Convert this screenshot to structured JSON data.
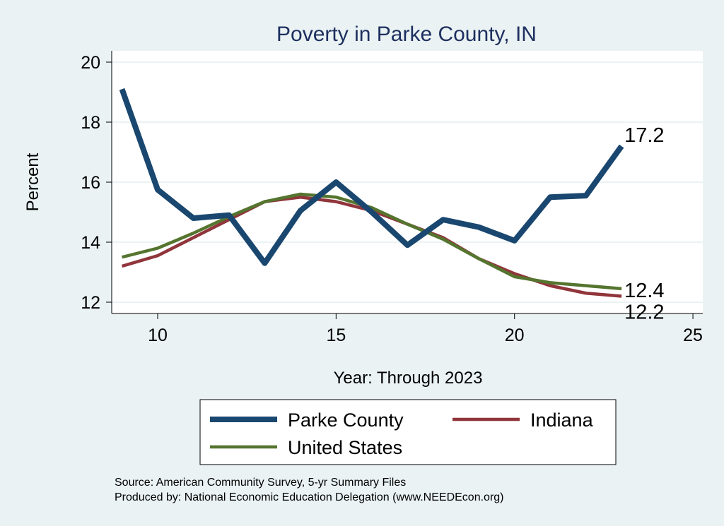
{
  "chart_data": {
    "type": "line",
    "title": "Poverty in Parke County, IN",
    "xlabel": "Year: Through 2023",
    "ylabel": "Percent",
    "xlim": [
      8.7,
      25.3
    ],
    "ylim": [
      11.6,
      20.4
    ],
    "xticks": [
      10,
      15,
      20,
      25
    ],
    "yticks": [
      12,
      14,
      16,
      18,
      20
    ],
    "grid": true,
    "x": [
      9,
      10,
      11,
      12,
      13,
      14,
      15,
      16,
      17,
      18,
      19,
      20,
      21,
      22,
      23
    ],
    "series": [
      {
        "name": "Parke County",
        "color": "#1a476f",
        "width": 8,
        "values": [
          19.1,
          15.75,
          14.8,
          14.9,
          13.3,
          15.05,
          16.0,
          15.0,
          13.9,
          14.75,
          14.5,
          14.05,
          15.5,
          15.55,
          17.2
        ],
        "end_label": "17.2"
      },
      {
        "name": "Indiana",
        "color": "#90353b",
        "width": 4.5,
        "values": [
          13.2,
          13.55,
          14.15,
          14.75,
          15.35,
          15.5,
          15.35,
          15.05,
          14.6,
          14.15,
          13.45,
          12.95,
          12.55,
          12.3,
          12.2
        ],
        "end_label": "12.2"
      },
      {
        "name": "United States",
        "color": "#55752f",
        "width": 4.5,
        "values": [
          13.5,
          13.8,
          14.3,
          14.85,
          15.35,
          15.6,
          15.5,
          15.15,
          14.6,
          14.1,
          13.45,
          12.85,
          12.65,
          12.55,
          12.45
        ],
        "end_label": "12.4"
      }
    ],
    "legend": {
      "placement": "bottom",
      "entries": [
        "Parke County",
        "Indiana",
        "United States"
      ]
    },
    "notes": [
      "Source: American Community Survey, 5-yr Summary Files",
      "Produced by: National Economic Education Delegation (www.NEEDEcon.org)"
    ]
  }
}
